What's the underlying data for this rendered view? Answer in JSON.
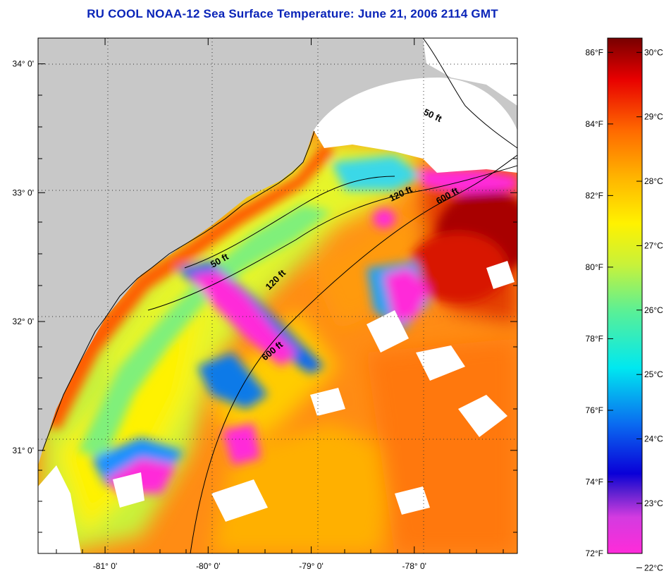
{
  "title": "RU COOL  NOAA-12  Sea Surface Temperature:  June 21, 2006 2114 GMT",
  "map": {
    "longitude_ticks": [
      "-81° 0'",
      "-80° 0'",
      "-79° 0'",
      "-78° 0'"
    ],
    "latitude_ticks": [
      "34° 0'",
      "33° 0'",
      "32° 0'",
      "31° 0'"
    ],
    "longitude_values": [
      -81,
      -80,
      -79,
      -78
    ],
    "latitude_values": [
      34,
      33,
      32,
      31
    ],
    "lon_range": [
      -81.65,
      -77.0
    ],
    "lat_range": [
      30.2,
      34.2
    ],
    "contour_labels": [
      "50 ft",
      "120 ft",
      "600 ft",
      "50 ft",
      "120 ft",
      "600 ft"
    ],
    "colors": {
      "land": "#c8c8c8",
      "no_data": "#ffffff",
      "grid": "#333333"
    }
  },
  "colorbar": {
    "fahrenheit_labels": [
      "86°F",
      "84°F",
      "82°F",
      "80°F",
      "78°F",
      "76°F",
      "74°F",
      "72°F"
    ],
    "fahrenheit_values": [
      86,
      84,
      82,
      80,
      78,
      76,
      74,
      72
    ],
    "celsius_labels": [
      "30°C",
      "29°C",
      "28°C",
      "27°C",
      "26°C",
      "25°C",
      "24°C",
      "23°C",
      "22°C"
    ],
    "celsius_values": [
      30,
      29,
      28,
      27,
      26,
      25,
      24,
      23,
      22
    ],
    "range_f": [
      72,
      86.4
    ],
    "stops": [
      "#ff2bd9",
      "#b82bd9",
      "#0a00d8",
      "#0a6af0",
      "#00e8f0",
      "#5af096",
      "#c8f23a",
      "#fff200",
      "#ffb400",
      "#ff6a00",
      "#e80000",
      "#780000"
    ]
  }
}
